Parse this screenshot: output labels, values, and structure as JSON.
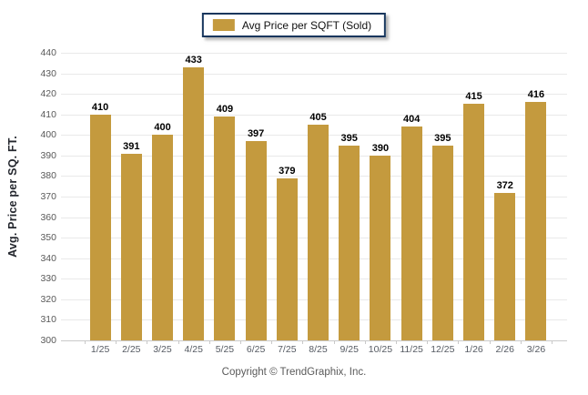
{
  "legend": {
    "label": "Avg Price per SQFT (Sold)",
    "swatch_color": "#c49a3e"
  },
  "chart_data": {
    "type": "bar",
    "title": "",
    "categories": [
      "1/25",
      "2/25",
      "3/25",
      "4/25",
      "5/25",
      "6/25",
      "7/25",
      "8/25",
      "9/25",
      "10/25",
      "11/25",
      "12/25",
      "1/26",
      "2/26",
      "3/26"
    ],
    "values": [
      410,
      391,
      400,
      433,
      409,
      397,
      379,
      405,
      395,
      390,
      404,
      395,
      415,
      372,
      416
    ],
    "series_name": "Avg Price per SQFT (Sold)",
    "xlabel": "",
    "ylabel": "Avg. Price per SQ. FT.",
    "ylim": [
      300,
      440
    ],
    "ytick_step": 10,
    "grid": true,
    "legend_position": "top-center",
    "bar_color": "#c49a3e",
    "value_labels": true
  },
  "footer": {
    "copyright": "Copyright © TrendGraphix, Inc."
  },
  "colors": {
    "bar": "#c49a3e",
    "gridline": "#e9e9e9",
    "axis_line": "#c9c9c9",
    "tick_label": "#595959",
    "legend_border": "#17365d",
    "value_label": "#000000",
    "copyright_text": "#5a5a5a"
  }
}
